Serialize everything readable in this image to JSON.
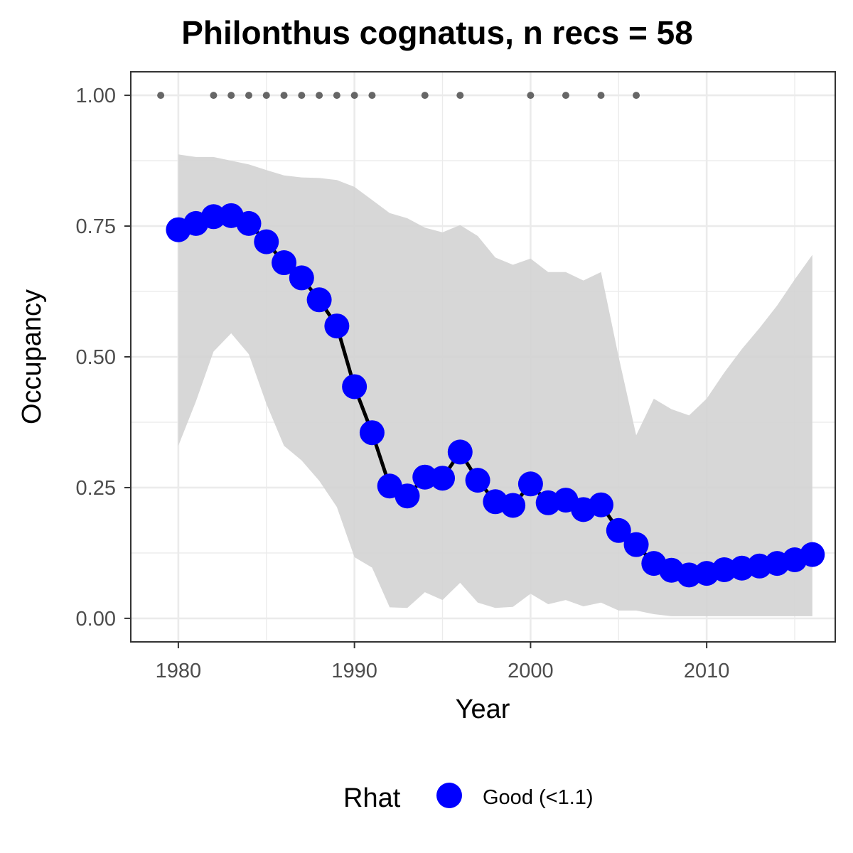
{
  "chart_data": {
    "type": "line",
    "title": "Philonthus cognatus, n recs = 58",
    "xlabel": "Year",
    "ylabel": "Occupancy",
    "xlim": [
      1977.3,
      2017.3
    ],
    "ylim": [
      -0.045,
      1.045
    ],
    "x_ticks": [
      1980,
      1990,
      2000,
      2010
    ],
    "x_tick_labels": [
      "1980",
      "1990",
      "2000",
      "2010"
    ],
    "y_ticks": [
      0,
      0.25,
      0.5,
      0.75,
      1
    ],
    "y_tick_labels": [
      "0.00",
      "0.25",
      "0.50",
      "0.75",
      "1.00"
    ],
    "grid": true,
    "legend": {
      "position": "bottom",
      "title": "Rhat",
      "entries": [
        {
          "label": "Good (<1.1)",
          "color": "#0000ff"
        }
      ]
    },
    "colors": {
      "points": "#0000ff",
      "line": "#000000",
      "ribbon": "#d3d3d3",
      "records": "#666666"
    },
    "series": [
      {
        "name": "Good (<1.1)",
        "x": [
          1980,
          1981,
          1982,
          1983,
          1984,
          1985,
          1986,
          1987,
          1988,
          1989,
          1990,
          1991,
          1992,
          1993,
          1994,
          1995,
          1996,
          1997,
          1998,
          1999,
          2000,
          2001,
          2002,
          2003,
          2004,
          2005,
          2006,
          2007,
          2008,
          2009,
          2010,
          2011,
          2012,
          2013,
          2014,
          2015,
          2016
        ],
        "y": [
          0.743,
          0.755,
          0.768,
          0.77,
          0.755,
          0.72,
          0.68,
          0.651,
          0.609,
          0.559,
          0.443,
          0.355,
          0.253,
          0.234,
          0.27,
          0.268,
          0.318,
          0.264,
          0.223,
          0.216,
          0.257,
          0.221,
          0.226,
          0.208,
          0.217,
          0.168,
          0.141,
          0.105,
          0.092,
          0.083,
          0.086,
          0.093,
          0.096,
          0.1,
          0.105,
          0.112,
          0.122
        ]
      }
    ],
    "credible_interval": {
      "x": [
        1980,
        1981,
        1982,
        1983,
        1984,
        1985,
        1986,
        1987,
        1988,
        1989,
        1990,
        1991,
        1992,
        1993,
        1994,
        1995,
        1996,
        1997,
        1998,
        1999,
        2000,
        2001,
        2002,
        2003,
        2004,
        2005,
        2006,
        2007,
        2008,
        2009,
        2010,
        2011,
        2012,
        2013,
        2014,
        2015,
        2016
      ],
      "upper": [
        0.887,
        0.882,
        0.882,
        0.875,
        0.868,
        0.857,
        0.847,
        0.843,
        0.842,
        0.838,
        0.825,
        0.8,
        0.775,
        0.765,
        0.747,
        0.738,
        0.752,
        0.731,
        0.69,
        0.676,
        0.688,
        0.662,
        0.662,
        0.646,
        0.662,
        0.5,
        0.35,
        0.42,
        0.4,
        0.388,
        0.42,
        0.47,
        0.515,
        0.555,
        0.598,
        0.648,
        0.695
      ],
      "lower": [
        0.33,
        0.415,
        0.51,
        0.545,
        0.505,
        0.41,
        0.33,
        0.302,
        0.263,
        0.213,
        0.117,
        0.097,
        0.021,
        0.02,
        0.05,
        0.035,
        0.068,
        0.03,
        0.02,
        0.022,
        0.047,
        0.027,
        0.035,
        0.023,
        0.03,
        0.015,
        0.015,
        0.008,
        0.004,
        0.004,
        0.004,
        0.004,
        0.004,
        0.004,
        0.004,
        0.004,
        0.004
      ]
    },
    "records": {
      "y": 1,
      "x": [
        1979,
        1982,
        1983,
        1984,
        1985,
        1986,
        1987,
        1988,
        1989,
        1990,
        1991,
        1994,
        1996,
        2000,
        2002,
        2004,
        2006
      ]
    }
  }
}
